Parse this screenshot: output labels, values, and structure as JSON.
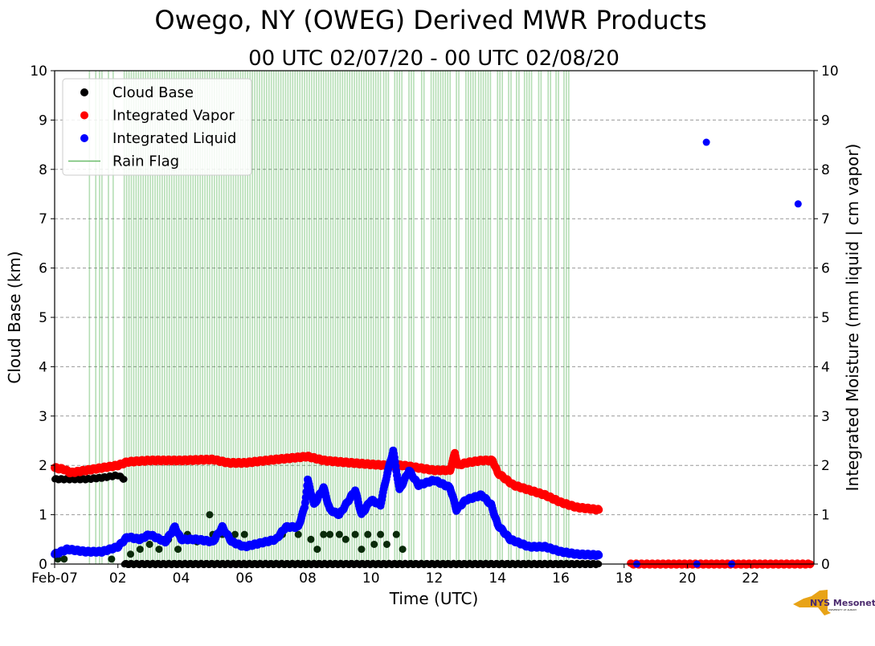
{
  "chart_data": {
    "type": "scatter",
    "title": "Owego, NY (OWEG) Derived MWR Products",
    "subtitle": "00 UTC 02/07/20 - 00 UTC 02/08/20",
    "xlabel": "Time (UTC)",
    "ylabel": "Cloud Base (km)",
    "ylabel_right": "Integrated Moisture (mm liquid | cm vapor)",
    "xlim": [
      0,
      24
    ],
    "ylim": [
      0,
      10
    ],
    "ylim_right": [
      0,
      10
    ],
    "grid": "horizontal dashed",
    "legend_placement": "top-left",
    "x_ticks": [
      {
        "value": 0,
        "label": "Feb-07"
      },
      {
        "value": 2,
        "label": "02"
      },
      {
        "value": 4,
        "label": "04"
      },
      {
        "value": 6,
        "label": "06"
      },
      {
        "value": 8,
        "label": "08"
      },
      {
        "value": 10,
        "label": "10"
      },
      {
        "value": 12,
        "label": "12"
      },
      {
        "value": 14,
        "label": "14"
      },
      {
        "value": 16,
        "label": "16"
      },
      {
        "value": 18,
        "label": "18"
      },
      {
        "value": 20,
        "label": "20"
      },
      {
        "value": 22,
        "label": "22"
      }
    ],
    "y_ticks": [
      "0",
      "1",
      "2",
      "3",
      "4",
      "5",
      "6",
      "7",
      "8",
      "9",
      "10"
    ],
    "legend": [
      "Cloud Base",
      "Integrated Vapor",
      "Integrated Liquid",
      "Rain Flag"
    ],
    "colors": {
      "cloud_base": "#000000",
      "vapor": "#ff0000",
      "liquid": "#0000ff",
      "rain": "#2ca02c"
    },
    "rain_flag_periods": [
      [
        1.1,
        1.15
      ],
      [
        1.3,
        1.35
      ],
      [
        1.42,
        1.55
      ],
      [
        1.7,
        1.75
      ],
      [
        1.85,
        1.9
      ],
      [
        2.2,
        10.3
      ],
      [
        10.4,
        10.6
      ],
      [
        10.75,
        11.0
      ],
      [
        11.2,
        11.4
      ],
      [
        11.6,
        11.7
      ],
      [
        11.9,
        12.5
      ],
      [
        12.7,
        12.8
      ],
      [
        13.0,
        13.3
      ],
      [
        13.4,
        13.8
      ],
      [
        14.0,
        14.2
      ],
      [
        14.35,
        14.45
      ],
      [
        14.6,
        14.7
      ],
      [
        14.85,
        15.1
      ],
      [
        15.3,
        15.4
      ],
      [
        15.6,
        15.7
      ],
      [
        15.85,
        15.95
      ],
      [
        16.1,
        16.3
      ]
    ],
    "series": [
      {
        "name": "Integrated Vapor",
        "unit": "cm",
        "x": [
          0,
          0.3,
          0.5,
          1,
          1.5,
          2,
          2.3,
          3,
          4,
          5,
          5.5,
          6,
          7,
          8,
          8.5,
          9,
          10,
          10.5,
          11,
          11.5,
          12,
          12.5,
          12.65,
          12.75,
          13,
          13.5,
          13.85,
          14,
          14.5,
          15,
          15.5,
          16,
          16.5,
          17.2
        ],
        "y": [
          1.95,
          1.92,
          1.85,
          1.9,
          1.95,
          2.0,
          2.07,
          2.1,
          2.1,
          2.12,
          2.05,
          2.05,
          2.12,
          2.18,
          2.1,
          2.07,
          2.02,
          2.0,
          2.0,
          1.95,
          1.9,
          1.9,
          2.25,
          2.0,
          2.05,
          2.1,
          2.1,
          1.85,
          1.6,
          1.5,
          1.4,
          1.25,
          1.15,
          1.1
        ]
      },
      {
        "name": "Integrated Vapor (late)",
        "unit": "cm",
        "x": [
          18.2,
          23.9
        ],
        "y": [
          0,
          0
        ]
      },
      {
        "name": "Integrated Liquid",
        "unit": "mm",
        "x": [
          0,
          0.4,
          1,
          1.5,
          2,
          2.3,
          2.7,
          3,
          3.5,
          3.8,
          4,
          4.5,
          5,
          5.3,
          5.6,
          6,
          7,
          7.3,
          7.7,
          7.9,
          8,
          8.2,
          8.5,
          8.7,
          9,
          9.3,
          9.5,
          9.7,
          10,
          10.3,
          10.5,
          10.7,
          10.9,
          11.2,
          11.5,
          12,
          12.5,
          12.7,
          13,
          13.5,
          13.8,
          14,
          14.4,
          15,
          15.5,
          16,
          16.5,
          17.2
        ],
        "y": [
          0.2,
          0.3,
          0.25,
          0.25,
          0.35,
          0.55,
          0.5,
          0.6,
          0.45,
          0.75,
          0.5,
          0.5,
          0.45,
          0.75,
          0.45,
          0.35,
          0.5,
          0.75,
          0.75,
          1.15,
          1.7,
          1.2,
          1.55,
          1.1,
          1.0,
          1.3,
          1.5,
          1.0,
          1.3,
          1.2,
          1.8,
          2.3,
          1.5,
          1.9,
          1.6,
          1.7,
          1.55,
          1.1,
          1.3,
          1.4,
          1.2,
          0.8,
          0.5,
          0.35,
          0.35,
          0.25,
          0.2,
          0.18
        ]
      },
      {
        "name": "Integrated Liquid (late)",
        "unit": "mm",
        "x": [
          18.4,
          20.3,
          20.6,
          21.4,
          23.5
        ],
        "y": [
          0,
          0,
          8.55,
          0,
          7.3
        ]
      },
      {
        "name": "Cloud Base",
        "unit": "km",
        "x": [
          0,
          0.5,
          1,
          1.5,
          2,
          2.2
        ],
        "y": [
          1.72,
          1.72,
          1.72,
          1.75,
          1.8,
          1.72
        ]
      },
      {
        "name": "Cloud Base (zero)",
        "unit": "km",
        "x": [
          2.2,
          17.2
        ],
        "y": [
          0,
          0
        ]
      },
      {
        "name": "Cloud Base (scattered)",
        "unit": "km",
        "x": [
          0.1,
          0.3,
          1.8,
          2.4,
          2.7,
          3.0,
          3.3,
          3.6,
          3.9,
          4.2,
          4.5,
          4.9,
          5.0,
          5.3,
          5.7,
          6.0,
          7.2,
          7.7,
          8.1,
          8.3,
          8.5,
          8.7,
          9.0,
          9.2,
          9.5,
          9.7,
          9.9,
          10.1,
          10.3,
          10.5,
          10.8,
          11.0
        ],
        "y": [
          0.1,
          0.1,
          0.1,
          0.2,
          0.3,
          0.4,
          0.3,
          0.5,
          0.3,
          0.6,
          0.45,
          1.0,
          0.6,
          0.6,
          0.6,
          0.6,
          0.6,
          0.6,
          0.5,
          0.3,
          0.6,
          0.6,
          0.6,
          0.5,
          0.6,
          0.3,
          0.6,
          0.4,
          0.6,
          0.4,
          0.6,
          0.3
        ]
      }
    ]
  },
  "logo": {
    "text": "NYS Mesonet",
    "subtext": "UNIVERSITY AT ALBANY"
  }
}
